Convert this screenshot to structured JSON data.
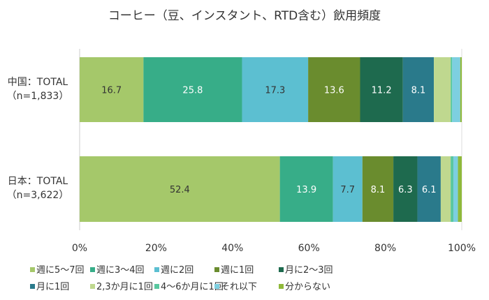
{
  "chart_data": {
    "type": "bar",
    "orientation": "horizontal",
    "stacked": true,
    "title": "コーヒー（豆、インスタント、RTD含む）飲用頻度",
    "categories": [
      {
        "line1": "中国：TOTAL",
        "line2": "（n=1,833）"
      },
      {
        "line1": "日本：TOTAL",
        "line2": "（n=3,622）"
      }
    ],
    "xlim": [
      0,
      100
    ],
    "xticks": [
      "0%",
      "20%",
      "40%",
      "60%",
      "80%",
      "100%"
    ],
    "legend_position": "bottom",
    "series": [
      {
        "name": "週に5～7回",
        "color": "#a5c86a",
        "values": [
          16.7,
          52.4
        ],
        "labels": [
          "16.7",
          "52.4"
        ],
        "label_color": "#333333"
      },
      {
        "name": "週に3～4回",
        "color": "#37ad88",
        "values": [
          25.8,
          13.9
        ],
        "labels": [
          "25.8",
          "13.9"
        ],
        "label_color": "#ffffff"
      },
      {
        "name": "週に2回",
        "color": "#5cbfd1",
        "values": [
          17.3,
          7.7
        ],
        "labels": [
          "17.3",
          "7.7"
        ],
        "label_color": "#333333"
      },
      {
        "name": "週に1回",
        "color": "#6a8c2e",
        "values": [
          13.6,
          8.1
        ],
        "labels": [
          "13.6",
          "8.1"
        ],
        "label_color": "#ffffff"
      },
      {
        "name": "月に2～3回",
        "color": "#1e6a4e",
        "values": [
          11.2,
          6.3
        ],
        "labels": [
          "11.2",
          "6.3"
        ],
        "label_color": "#ffffff"
      },
      {
        "name": "月に1回",
        "color": "#2a7a8b",
        "values": [
          8.1,
          6.1
        ],
        "labels": [
          "8.1",
          "6.1"
        ],
        "label_color": "#ffffff"
      },
      {
        "name": "2,3か月に1回",
        "color": "#bfd88f",
        "values": [
          4.4,
          2.6
        ],
        "labels": [
          "",
          ""
        ],
        "label_color": "#333333"
      },
      {
        "name": "4～6か月に1回",
        "color": "#58c79e",
        "values": [
          0.4,
          0.7
        ],
        "labels": [
          "",
          ""
        ],
        "label_color": "#333333"
      },
      {
        "name": "それ以下",
        "color": "#7dcfe0",
        "values": [
          2.1,
          1.2
        ],
        "labels": [
          "",
          ""
        ],
        "label_color": "#333333"
      },
      {
        "name": "分からない",
        "color": "#8fb93a",
        "values": [
          0.4,
          1.0
        ],
        "labels": [
          "",
          ""
        ],
        "label_color": "#333333"
      }
    ]
  }
}
